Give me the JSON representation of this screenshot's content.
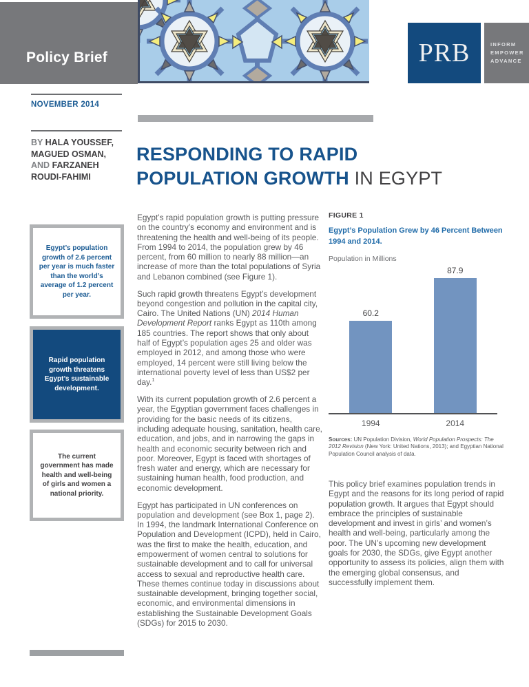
{
  "theme": {
    "header_gray": "#77787b",
    "navy": "#134a7e",
    "title_blue": "#17538c",
    "caption_blue": "#1e6aa8",
    "accent_blue": "#1c5c94",
    "bar_blue": "#7294c0",
    "body_gray": "#58595b",
    "dark_text": "#414042",
    "border_gray": "#b1b3b5"
  },
  "header": {
    "brief_type": "Policy Brief",
    "logo": {
      "acronym": "PRB",
      "tagline": [
        "INFORM",
        "EMPOWER",
        "ADVANCE"
      ]
    }
  },
  "sidebar": {
    "date": "NOVEMBER 2014",
    "byline": {
      "prefix": "BY",
      "name1": "HALA YOUSSEF,",
      "name2": "MAGUED OSMAN,",
      "conj": "AND",
      "name3": "FARZANEH",
      "name4": "ROUDI-FAHIMI"
    },
    "callouts": [
      {
        "style": "light-blue-text",
        "text": "Egypt’s population growth of 2.6 percent per year is much faster than the world’s average of 1.2 percent per year."
      },
      {
        "style": "navy-filled",
        "text": "Rapid population growth threatens Egypt’s sustainable development."
      },
      {
        "style": "light-dark-text",
        "text": "The current government has made health and well-being of girls and women a national priority."
      }
    ]
  },
  "main": {
    "title": {
      "line1": "RESPONDING TO RAPID",
      "line2_strong": "POPULATION GROWTH",
      "line2_normal": "IN EGYPT"
    },
    "paragraphs": {
      "p1": "Egypt’s rapid population growth is putting pressure on the country’s economy and environment and is threatening the health and well-being of its people. From 1994 to 2014, the population grew by 46 percent, from 60 million to nearly 88 million—an increase of more than the total populations of Syria and Lebanon combined (see Figure 1).",
      "p2a": "Such rapid growth threatens Egypt’s development beyond congestion and pollution in the capital city, Cairo. The United Nations (UN) ",
      "p2_italic": "2014 Human Development Report",
      "p2b": " ranks Egypt as 110th among 185 countries. The report shows that only about half of Egypt’s population ages 25 and older was employed in 2012, and among those who were employed, 14 percent were still living below the international poverty level of less than US$2 per day.",
      "p2_footnote_marker": "1",
      "p3": "With its current population growth of 2.6 percent a year, the Egyptian government faces challenges in providing for the basic needs of its citizens, including adequate housing, sanitation, health care, education, and jobs, and in narrowing the gaps in health and economic security between rich and poor. Moreover, Egypt is faced with shortages of fresh water and energy, which are necessary for sustaining human health, food production, and economic development.",
      "p4": "Egypt has participated in UN conferences on population and development (see Box 1, page 2). In 1994, the landmark International Conference on Population and Development (ICPD), held in Cairo, was the first to make the health, education, and empowerment of women central to solutions for sustainable development and to call for universal access to sexual and reproductive health care. These themes continue today in discussions about sustainable development, bringing together social, economic, and environmental dimensions in establishing the Sustainable Development Goals (SDGs) for 2015 to 2030.",
      "closing": "This policy brief examines population trends in Egypt and the reasons for its long period of rapid population growth. It argues that Egypt should embrace the principles of sustainable development and invest in girls’ and women’s health and well-being, particularly among the poor. The UN’s upcoming new development goals for 2030, the SDGs, give Egypt another opportunity to assess its policies, align them with the emerging global consensus, and successfully implement them."
    }
  },
  "figure": {
    "label": "FIGURE 1",
    "caption_line1": "Egypt’s Population Grew by 46 Percent Between",
    "caption_line2": "1994 and 2014.",
    "units_note": "Population in Millions",
    "chart_data": {
      "type": "bar",
      "categories": [
        "1994",
        "2014"
      ],
      "values": [
        60.2,
        87.9
      ],
      "title": "Egypt’s Population Grew by 46 Percent Between 1994 and 2014.",
      "xlabel": "",
      "ylabel": "Population in Millions",
      "ylim": [
        0,
        95
      ],
      "grid": false,
      "legend": "none",
      "bar_color": "#7294c0"
    },
    "sources": {
      "label": "Sources:",
      "seg_a": " UN Population Division, ",
      "seg_italic": "World Population Prospects: The 2012 Revision",
      "seg_b": " (New York: United Nations, 2013); and Egyptian National Population Council analysis of data."
    }
  }
}
